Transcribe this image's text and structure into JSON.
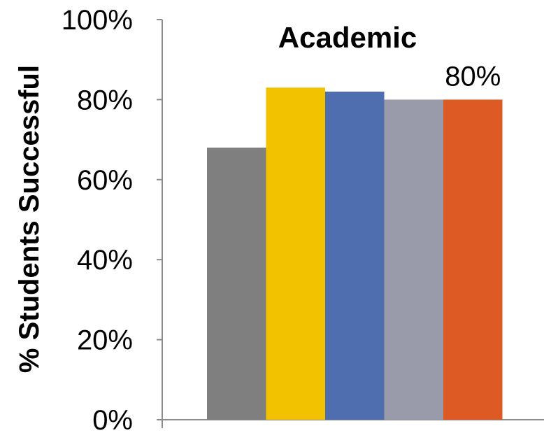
{
  "chart_data": {
    "type": "bar",
    "title": "Academic",
    "xlabel": "",
    "ylabel": "% Students Successful",
    "ylim": [
      0,
      100
    ],
    "yticks": [
      "0%",
      "20%",
      "40%",
      "60%",
      "80%",
      "100%"
    ],
    "grid": false,
    "legend": "none",
    "categories": [
      "",
      "",
      "",
      "",
      ""
    ],
    "values": [
      68,
      83,
      82,
      80,
      80
    ],
    "colors": [
      "#7f7f7f",
      "#f2c200",
      "#4f6eb0",
      "#999aaa",
      "#dd5a24"
    ],
    "data_labels": [
      {
        "index": 4,
        "text": "80%"
      }
    ]
  }
}
